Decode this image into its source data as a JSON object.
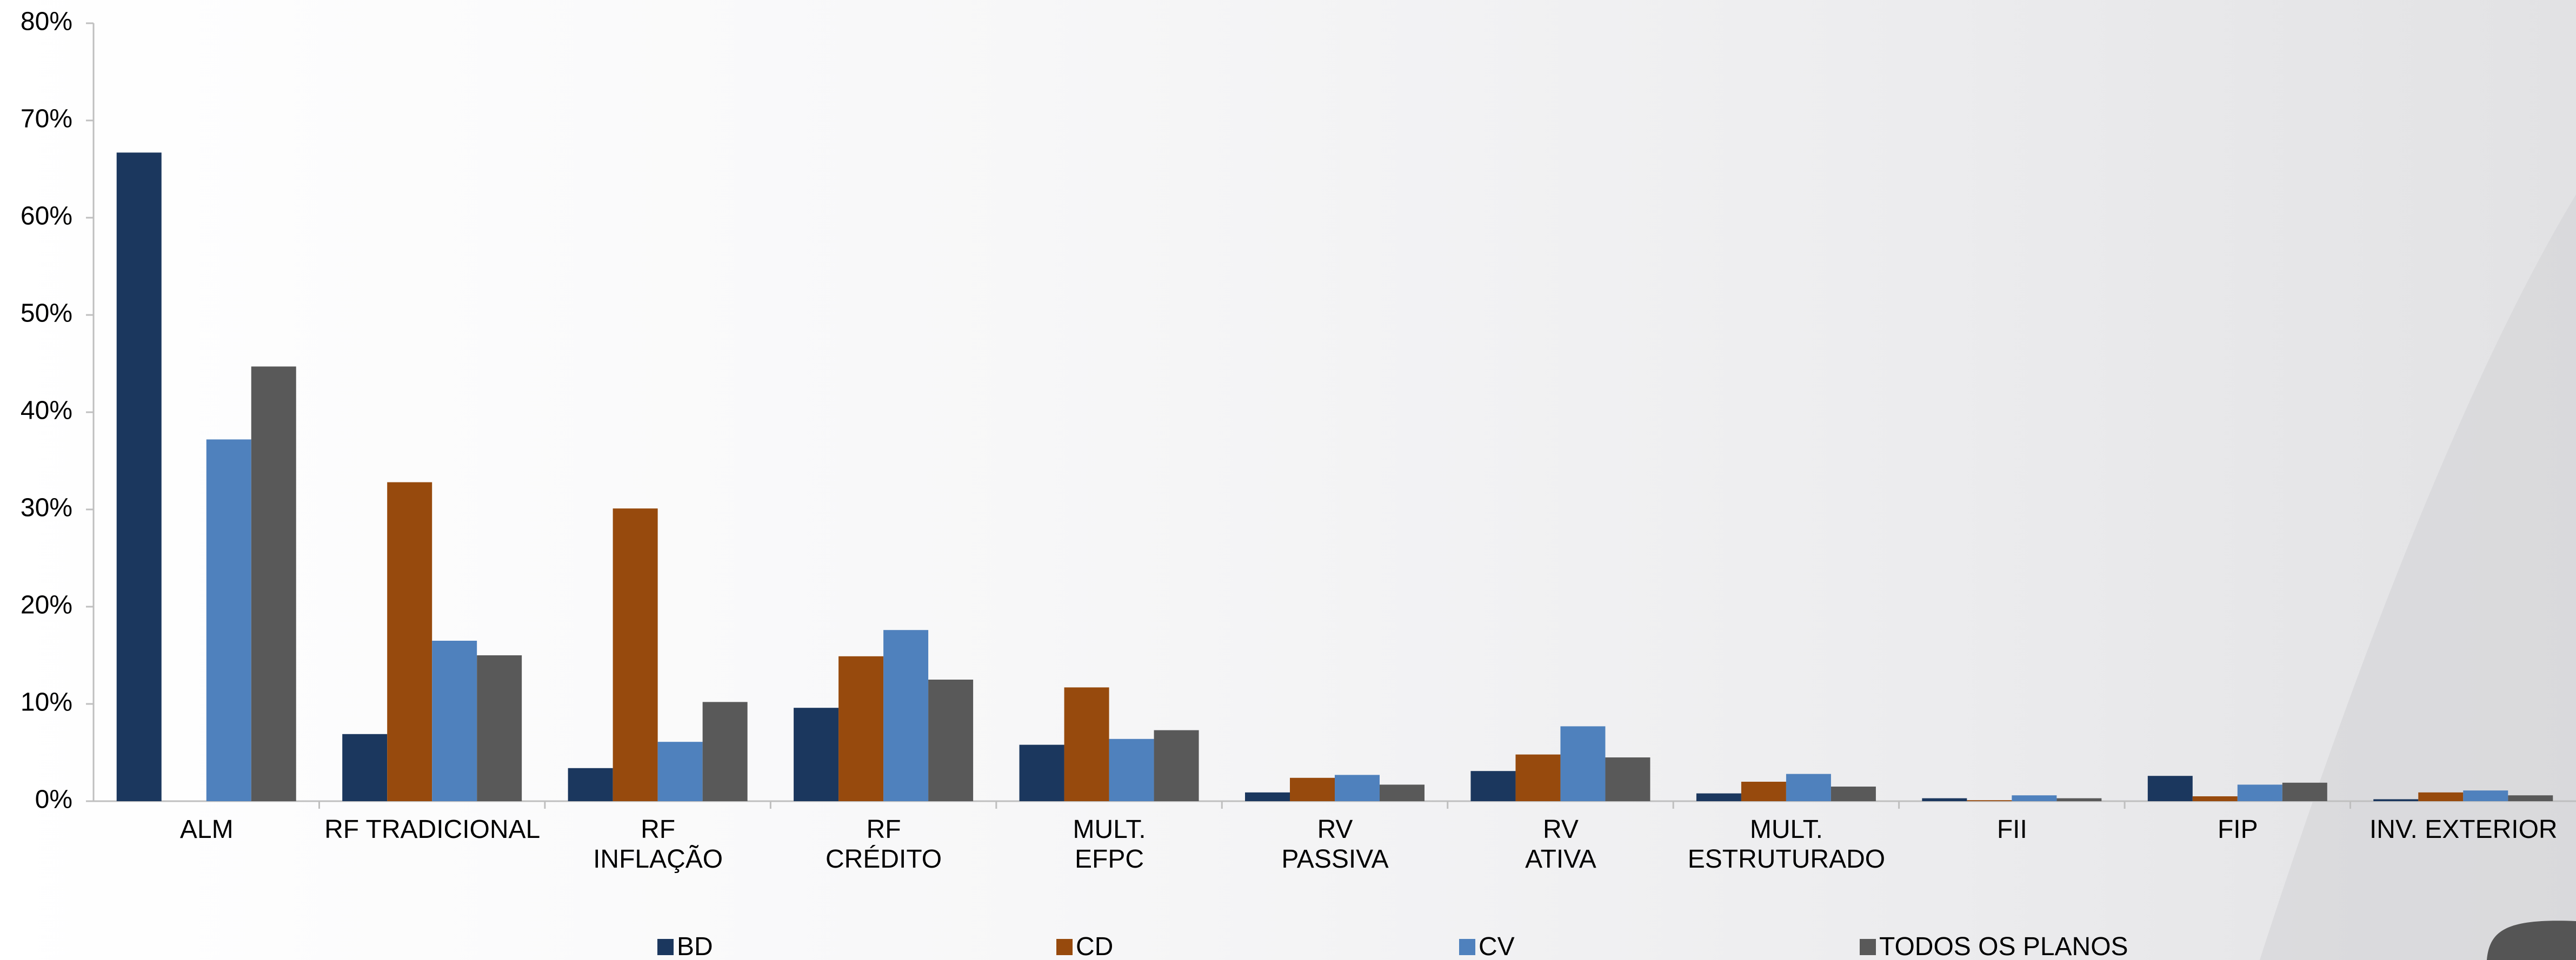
{
  "chart_data": {
    "type": "bar",
    "categories": [
      "ALM",
      "RF TRADICIONAL",
      "RF\nINFLAÇÃO",
      "RF\nCRÉDITO",
      "MULT.\nEFPC",
      "RV\nPASSIVA",
      "RV\nATIVA",
      "MULT.\nESTRUTURADO",
      "FII",
      "FIP",
      "INV. EXTERIOR"
    ],
    "series": [
      {
        "name": "BD",
        "color": "#1b375e",
        "values": [
          66.7,
          6.9,
          3.4,
          9.6,
          5.8,
          0.9,
          3.1,
          0.8,
          0.3,
          2.6,
          0.2
        ]
      },
      {
        "name": "CD",
        "color": "#974a0d",
        "values": [
          0,
          32.8,
          30.1,
          14.9,
          11.7,
          2.4,
          4.8,
          2.0,
          0.1,
          0.5,
          0.9
        ]
      },
      {
        "name": "CV",
        "color": "#4f81bd",
        "values": [
          37.2,
          16.5,
          6.1,
          17.6,
          6.4,
          2.7,
          7.7,
          2.8,
          0.6,
          1.7,
          1.1
        ]
      },
      {
        "name": "TODOS OS PLANOS",
        "color": "#595959",
        "values": [
          44.7,
          15.0,
          10.2,
          12.5,
          7.3,
          1.7,
          4.5,
          1.5,
          0.3,
          1.9,
          0.6
        ]
      }
    ],
    "ylim": [
      0,
      80
    ],
    "yticks": [
      {
        "value": 0,
        "label": "0%"
      },
      {
        "value": 10,
        "label": "10%"
      },
      {
        "value": 20,
        "label": "20%"
      },
      {
        "value": 30,
        "label": "30%"
      },
      {
        "value": 40,
        "label": "40%"
      },
      {
        "value": 50,
        "label": "50%"
      },
      {
        "value": 60,
        "label": "60%"
      },
      {
        "value": 70,
        "label": "70%"
      },
      {
        "value": 80,
        "label": "80%"
      }
    ],
    "grid": false,
    "legend": "bottom"
  }
}
